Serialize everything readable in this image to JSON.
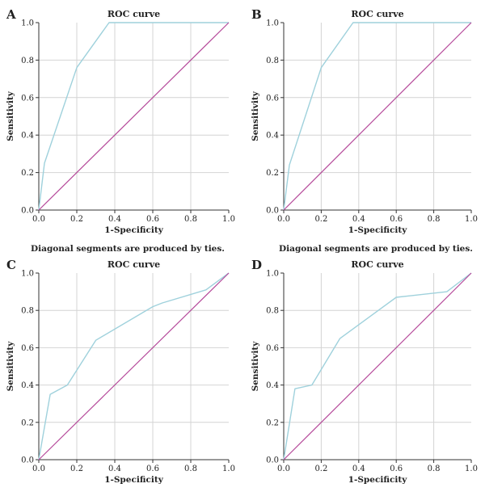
{
  "figure": {
    "footnotes": [
      "Diagonal segments are produced by ties.",
      "Diagonal segments are produced by ties."
    ]
  },
  "colors": {
    "roc": "#9fd1dc",
    "reference": "#b5499a",
    "grid": "#d4d4d4",
    "axis": "#333333",
    "text": "#222222"
  },
  "chart_data": [
    {
      "type": "line",
      "panel_label": "A",
      "title": "ROC curve",
      "xlabel": "1-Specificity",
      "ylabel": "Sensitivity",
      "xlim": [
        0,
        1
      ],
      "ylim": [
        0,
        1
      ],
      "x_ticks": [
        "0.0",
        "0.2",
        "0.4",
        "0.6",
        "0.8",
        "1.0"
      ],
      "y_ticks": [
        "0.0",
        "0.2",
        "0.4",
        "0.6",
        "0.8",
        "1.0"
      ],
      "grid": true,
      "series": [
        {
          "role": "roc",
          "x": [
            0,
            0.03,
            0.2,
            0.37,
            1.0
          ],
          "y": [
            0,
            0.25,
            0.76,
            1.0,
            1.0
          ]
        },
        {
          "role": "reference",
          "x": [
            0,
            1
          ],
          "y": [
            0,
            1
          ]
        }
      ]
    },
    {
      "type": "line",
      "panel_label": "B",
      "title": "ROC curve",
      "xlabel": "1-Specificity",
      "ylabel": "Sensitivity",
      "xlim": [
        0,
        1
      ],
      "ylim": [
        0,
        1
      ],
      "x_ticks": [
        "0.0",
        "0.2",
        "0.4",
        "0.6",
        "0.8",
        "1.0"
      ],
      "y_ticks": [
        "0.0",
        "0.2",
        "0.4",
        "0.6",
        "0.8",
        "1.0"
      ],
      "grid": true,
      "series": [
        {
          "role": "roc",
          "x": [
            0,
            0.03,
            0.2,
            0.37,
            1.0
          ],
          "y": [
            0,
            0.24,
            0.76,
            1.0,
            1.0
          ]
        },
        {
          "role": "reference",
          "x": [
            0,
            1
          ],
          "y": [
            0,
            1
          ]
        }
      ]
    },
    {
      "type": "line",
      "panel_label": "C",
      "title": "ROC curve",
      "xlabel": "1-Specificity",
      "ylabel": "Sensitivity",
      "xlim": [
        0,
        1
      ],
      "ylim": [
        0,
        1
      ],
      "x_ticks": [
        "0.0",
        "0.2",
        "0.4",
        "0.6",
        "0.8",
        "1.0"
      ],
      "y_ticks": [
        "0.0",
        "0.2",
        "0.4",
        "0.6",
        "0.8",
        "1.0"
      ],
      "grid": true,
      "series": [
        {
          "role": "roc",
          "x": [
            0,
            0.06,
            0.15,
            0.3,
            0.6,
            0.65,
            0.88,
            1.0
          ],
          "y": [
            0,
            0.35,
            0.4,
            0.64,
            0.82,
            0.84,
            0.91,
            1.0
          ]
        },
        {
          "role": "reference",
          "x": [
            0,
            1
          ],
          "y": [
            0,
            1
          ]
        }
      ]
    },
    {
      "type": "line",
      "panel_label": "D",
      "title": "ROC curve",
      "xlabel": "1-Specificity",
      "ylabel": "Sensitivity",
      "xlim": [
        0,
        1
      ],
      "ylim": [
        0,
        1
      ],
      "x_ticks": [
        "0.0",
        "0.2",
        "0.4",
        "0.6",
        "0.8",
        "1.0"
      ],
      "y_ticks": [
        "0.0",
        "0.2",
        "0.4",
        "0.6",
        "0.8",
        "1.0"
      ],
      "grid": true,
      "series": [
        {
          "role": "roc",
          "x": [
            0,
            0.06,
            0.15,
            0.3,
            0.6,
            0.87,
            1.0
          ],
          "y": [
            0,
            0.38,
            0.4,
            0.65,
            0.87,
            0.9,
            1.0
          ]
        },
        {
          "role": "reference",
          "x": [
            0,
            1
          ],
          "y": [
            0,
            1
          ]
        }
      ]
    }
  ]
}
